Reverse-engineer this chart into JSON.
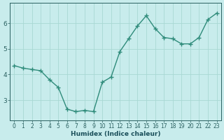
{
  "x": [
    0,
    1,
    2,
    3,
    4,
    5,
    6,
    7,
    8,
    9,
    10,
    11,
    12,
    13,
    14,
    15,
    16,
    17,
    18,
    19,
    20,
    21,
    22,
    23
  ],
  "y": [
    4.35,
    4.25,
    4.2,
    4.15,
    3.8,
    3.5,
    2.65,
    2.55,
    2.6,
    2.55,
    3.7,
    3.9,
    4.9,
    5.4,
    5.9,
    6.3,
    5.8,
    5.45,
    5.4,
    5.2,
    5.2,
    5.45,
    6.15,
    6.4
  ],
  "xlabel": "Humidex (Indice chaleur)",
  "xticks": [
    0,
    1,
    2,
    3,
    4,
    5,
    6,
    7,
    8,
    9,
    10,
    11,
    12,
    13,
    14,
    15,
    16,
    17,
    18,
    19,
    20,
    21,
    22,
    23
  ],
  "yticks": [
    3,
    4,
    5,
    6
  ],
  "ylim": [
    2.2,
    6.8
  ],
  "xlim": [
    -0.5,
    23.5
  ],
  "line_color": "#2e8b7a",
  "marker": "+",
  "bg_color": "#c8ecec",
  "grid_color": "#a8d8d4",
  "tick_color": "#2a6060",
  "label_color": "#1a4f5a",
  "marker_size": 4,
  "linewidth": 1.0,
  "tick_fontsize": 5.5,
  "xlabel_fontsize": 6.5
}
